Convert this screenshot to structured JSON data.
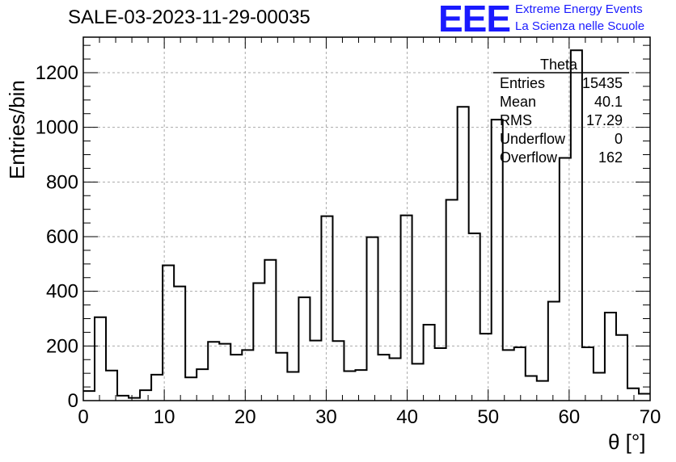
{
  "header": {
    "title": "SALE-03-2023-11-29-00035",
    "logo_text": "EEE",
    "logo_line1": "Extreme Energy Events",
    "logo_line2": "La Scienza nelle Scuole"
  },
  "stats": {
    "title": "Theta",
    "rows": [
      {
        "key": "Entries",
        "value": "15435"
      },
      {
        "key": "Mean",
        "value": "40.1"
      },
      {
        "key": "RMS",
        "value": "17.29"
      },
      {
        "key": "Underflow",
        "value": "0"
      },
      {
        "key": "Overflow",
        "value": "162"
      }
    ]
  },
  "chart_data": {
    "type": "bar",
    "title": "SALE-03-2023-11-29-00035",
    "xlabel": "θ [°]",
    "ylabel": "Entries/bin",
    "xlim": [
      0,
      70
    ],
    "ylim": [
      0,
      1330
    ],
    "xticks": [
      0,
      10,
      20,
      30,
      40,
      50,
      60,
      70
    ],
    "yticks": [
      0,
      200,
      400,
      600,
      800,
      1000,
      1200
    ],
    "grid": true,
    "bin_width": 1.4,
    "bin_edges_start": 0,
    "values": [
      35,
      305,
      110,
      18,
      10,
      38,
      95,
      495,
      418,
      85,
      115,
      215,
      208,
      168,
      185,
      430,
      515,
      175,
      105,
      378,
      220,
      675,
      218,
      108,
      112,
      598,
      168,
      155,
      678,
      135,
      278,
      192,
      735,
      1075,
      612,
      245,
      1028,
      185,
      195,
      90,
      72,
      362,
      888,
      1282,
      195,
      102,
      322,
      240,
      45,
      25
    ],
    "colors": {
      "line": "#000000",
      "grid": "#aaaaaa",
      "logo": "#1a1aff"
    }
  }
}
